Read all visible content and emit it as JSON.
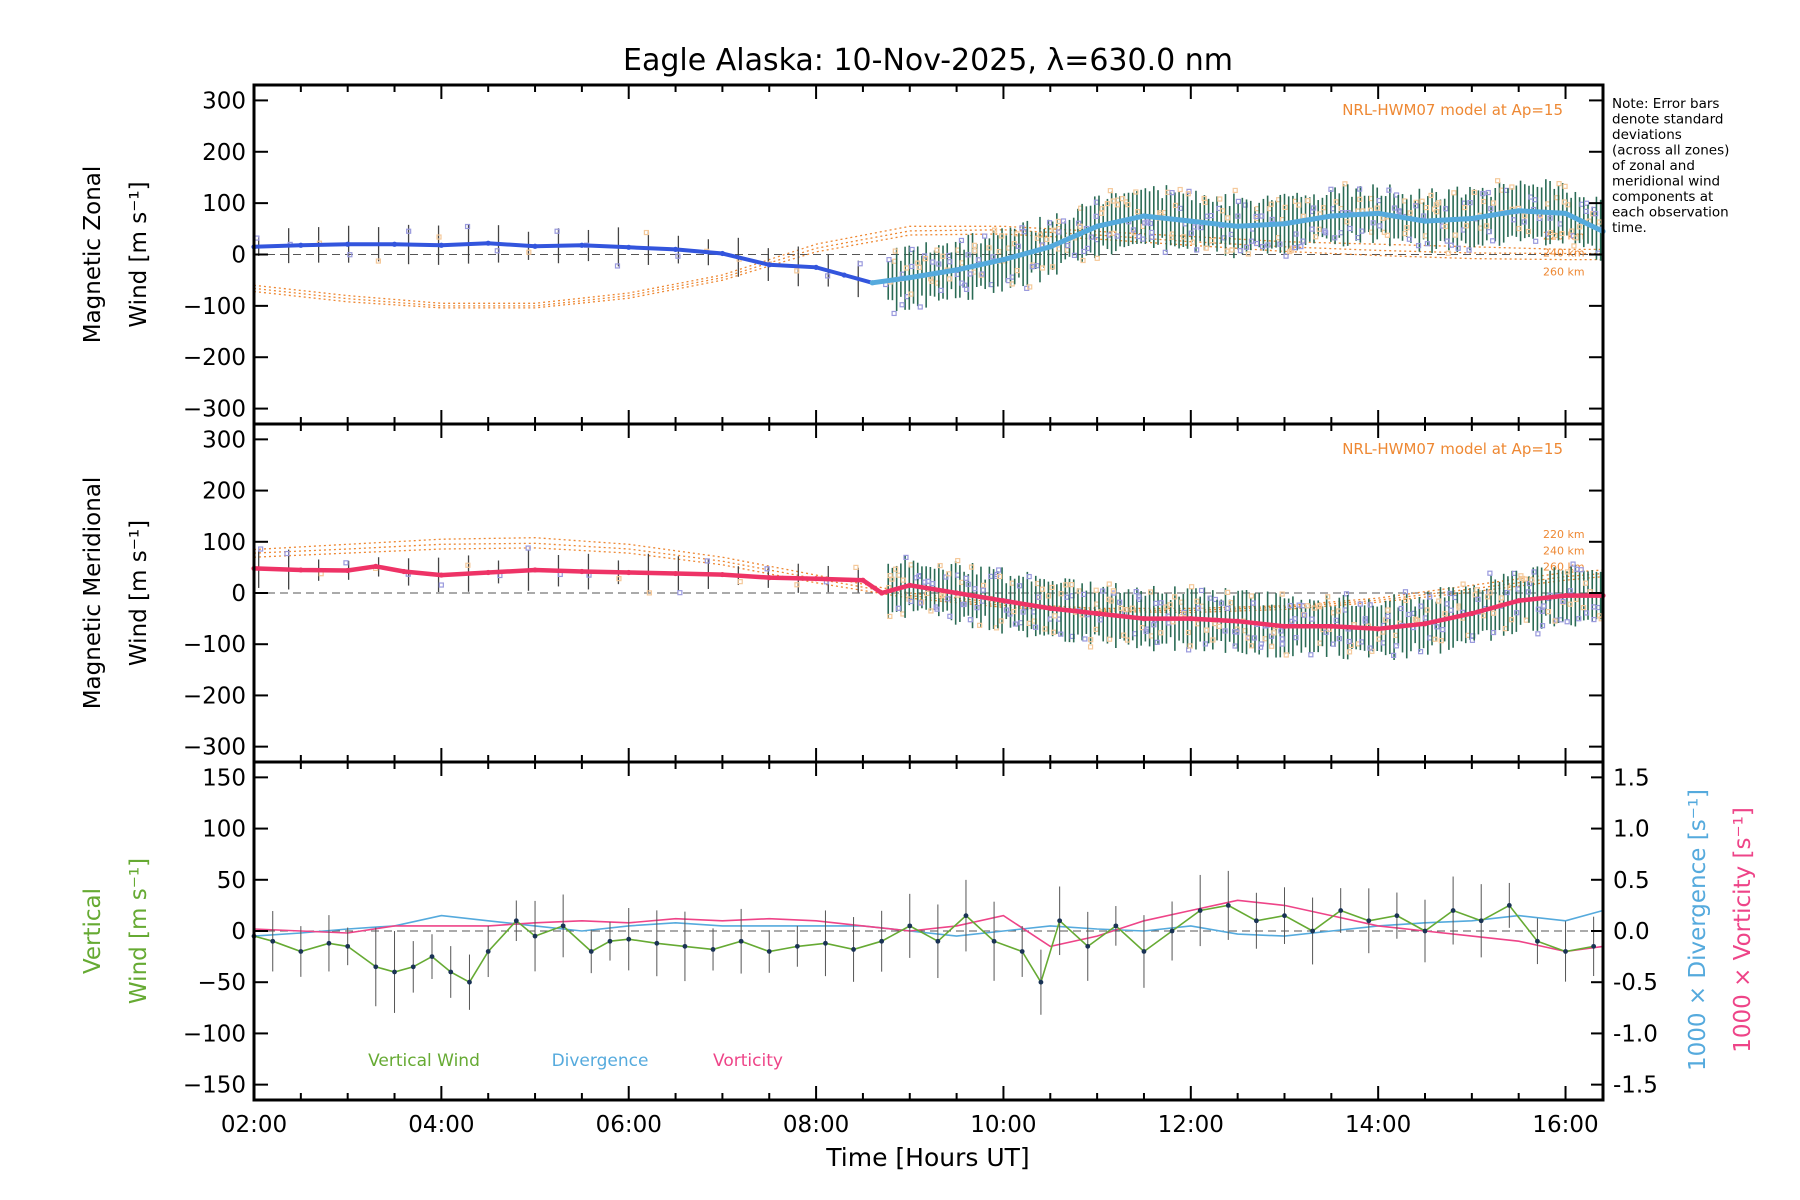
{
  "title": "Eagle Alaska: 10-Nov-2025, λ=630.0 nm",
  "note": [
    "Note: Error bars",
    "denote standard",
    "deviations",
    "(across all zones)",
    "of zonal and",
    "meridional wind",
    "components at",
    "each observation",
    "time."
  ],
  "xlabel": "Time [Hours UT]",
  "x_ticks": [
    "02:00",
    "04:00",
    "06:00",
    "08:00",
    "10:00",
    "12:00",
    "14:00",
    "16:00"
  ],
  "colors": {
    "zonal": "#3355dd",
    "zonal_late": "#55aadd",
    "meridional": "#ee3366",
    "model": "#ee8833",
    "vertical": "#66aa33",
    "divergence": "#55aadd",
    "vorticity": "#ee4488",
    "errbar": "#444444",
    "zone_pts": "#9999dd"
  },
  "chart_data": [
    {
      "type": "line",
      "panel": "zonal",
      "ylabel_line1": "Magnetic Zonal",
      "ylabel_line2": "Wind [m s⁻¹]",
      "ylim": [
        -330,
        330
      ],
      "y_ticks": [
        300,
        200,
        100,
        0,
        -100,
        -200,
        -300
      ],
      "xlim": [
        2.0,
        16.4
      ],
      "model_label": "NRL-HWM07 model at Ap=15",
      "model_alt_labels": [
        "220 km",
        "240 km",
        "260 km"
      ],
      "series": [
        {
          "name": "Zonal wind",
          "x": [
            2.0,
            2.5,
            3.0,
            3.5,
            4.0,
            4.5,
            5.0,
            5.5,
            6.0,
            6.5,
            7.0,
            7.5,
            8.0,
            8.3,
            8.6,
            9.0,
            9.5,
            10.0,
            10.5,
            11.0,
            11.5,
            12.0,
            12.5,
            13.0,
            13.5,
            14.0,
            14.5,
            15.0,
            15.5,
            16.0,
            16.4
          ],
          "y": [
            15,
            18,
            20,
            20,
            18,
            22,
            16,
            18,
            14,
            10,
            2,
            -20,
            -25,
            -40,
            -55,
            -45,
            -30,
            -10,
            15,
            55,
            75,
            65,
            55,
            60,
            75,
            80,
            65,
            70,
            85,
            80,
            45
          ]
        },
        {
          "name": "Model 220 km",
          "x": [
            2,
            3,
            4,
            5,
            6,
            7,
            8,
            9,
            10,
            11,
            12,
            13,
            14,
            15,
            16,
            16.4
          ],
          "y": [
            -60,
            -80,
            -95,
            -95,
            -75,
            -40,
            20,
            55,
            55,
            45,
            35,
            25,
            20,
            15,
            10,
            10
          ]
        },
        {
          "name": "Model 240 km",
          "x": [
            2,
            3,
            4,
            5,
            6,
            7,
            8,
            9,
            10,
            11,
            12,
            13,
            14,
            15,
            16,
            16.4
          ],
          "y": [
            -66,
            -86,
            -100,
            -100,
            -80,
            -45,
            12,
            46,
            48,
            38,
            25,
            15,
            8,
            3,
            2,
            2
          ]
        },
        {
          "name": "Model 260 km",
          "x": [
            2,
            3,
            4,
            5,
            6,
            7,
            8,
            9,
            10,
            11,
            12,
            13,
            14,
            15,
            16,
            16.4
          ],
          "y": [
            -72,
            -92,
            -104,
            -104,
            -85,
            -50,
            5,
            38,
            40,
            30,
            18,
            6,
            -2,
            -8,
            -10,
            -10
          ]
        }
      ]
    },
    {
      "type": "line",
      "panel": "meridional",
      "ylabel_line1": "Magnetic Meridional",
      "ylabel_line2": "Wind [m s⁻¹]",
      "ylim": [
        -330,
        330
      ],
      "y_ticks": [
        300,
        200,
        100,
        0,
        -100,
        -200,
        -300
      ],
      "xlim": [
        2.0,
        16.4
      ],
      "model_label": "NRL-HWM07 model at Ap=15",
      "model_alt_labels": [
        "220 km",
        "240 km",
        "260 km"
      ],
      "series": [
        {
          "name": "Meridional wind",
          "x": [
            2.0,
            2.5,
            3.0,
            3.3,
            3.6,
            4.0,
            4.5,
            5.0,
            5.5,
            6.0,
            6.5,
            7.0,
            7.5,
            8.0,
            8.5,
            8.7,
            9.0,
            9.5,
            10.0,
            10.5,
            11.0,
            11.5,
            12.0,
            12.5,
            13.0,
            13.5,
            14.0,
            14.5,
            15.0,
            15.5,
            16.0,
            16.4
          ],
          "y": [
            48,
            45,
            44,
            52,
            42,
            35,
            40,
            45,
            42,
            40,
            38,
            36,
            30,
            28,
            25,
            0,
            15,
            0,
            -15,
            -30,
            -40,
            -50,
            -50,
            -55,
            -65,
            -65,
            -70,
            -60,
            -40,
            -15,
            -5,
            -5
          ]
        },
        {
          "name": "Model 220 km",
          "x": [
            2,
            3,
            4,
            5,
            6,
            7,
            8,
            9,
            10,
            11,
            12,
            13,
            14,
            15,
            16,
            16.4
          ],
          "y": [
            85,
            95,
            105,
            108,
            95,
            70,
            35,
            0,
            -20,
            -30,
            -30,
            -25,
            -10,
            15,
            40,
            45
          ]
        },
        {
          "name": "Model 240 km",
          "x": [
            2,
            3,
            4,
            5,
            6,
            7,
            8,
            9,
            10,
            11,
            12,
            13,
            14,
            15,
            16,
            16.4
          ],
          "y": [
            78,
            86,
            95,
            97,
            86,
            62,
            28,
            -5,
            -24,
            -33,
            -34,
            -28,
            -14,
            8,
            32,
            38
          ]
        },
        {
          "name": "Model 260 km",
          "x": [
            2,
            3,
            4,
            5,
            6,
            7,
            8,
            9,
            10,
            11,
            12,
            13,
            14,
            15,
            16,
            16.4
          ],
          "y": [
            70,
            78,
            86,
            88,
            78,
            55,
            20,
            -10,
            -28,
            -36,
            -38,
            -32,
            -18,
            2,
            25,
            32
          ]
        }
      ]
    },
    {
      "type": "line",
      "panel": "vertical",
      "ylabel_line1": "Vertical",
      "ylabel_line2": "Wind [m s⁻¹]",
      "ylim": [
        -165,
        165
      ],
      "y_ticks": [
        150,
        100,
        50,
        0,
        -50,
        -100,
        -150
      ],
      "xlim": [
        2.0,
        16.4
      ],
      "y2label_div": "1000 × Divergence [s⁻¹]",
      "y2label_vor": "1000 × Vorticity [s⁻¹]",
      "y2lim": [
        -1.65,
        1.65
      ],
      "y2_ticks": [
        "1.5",
        "1.0",
        "0.5",
        "0.0",
        "-0.5",
        "-1.0",
        "-1.5"
      ],
      "y2_tick_values": [
        1.5,
        1.0,
        0.5,
        0.0,
        -0.5,
        -1.0,
        -1.5
      ],
      "legend": [
        "Vertical Wind",
        "Divergence",
        "Vorticity"
      ],
      "series": [
        {
          "name": "Vertical Wind",
          "x": [
            2.0,
            2.2,
            2.5,
            2.8,
            3.0,
            3.3,
            3.5,
            3.7,
            3.9,
            4.1,
            4.3,
            4.5,
            4.8,
            5.0,
            5.3,
            5.6,
            5.8,
            6.0,
            6.3,
            6.6,
            6.9,
            7.2,
            7.5,
            7.8,
            8.1,
            8.4,
            8.7,
            9.0,
            9.3,
            9.6,
            9.9,
            10.2,
            10.4,
            10.6,
            10.9,
            11.2,
            11.5,
            11.8,
            12.1,
            12.4,
            12.7,
            13.0,
            13.3,
            13.6,
            13.9,
            14.2,
            14.5,
            14.8,
            15.1,
            15.4,
            15.7,
            16.0,
            16.3
          ],
          "y": [
            -5,
            -10,
            -20,
            -12,
            -15,
            -35,
            -40,
            -35,
            -25,
            -40,
            -50,
            -20,
            10,
            -5,
            5,
            -20,
            -10,
            -8,
            -12,
            -15,
            -18,
            -10,
            -20,
            -15,
            -12,
            -18,
            -10,
            5,
            -10,
            15,
            -10,
            -20,
            -50,
            10,
            -15,
            5,
            -20,
            0,
            20,
            25,
            10,
            15,
            0,
            20,
            10,
            15,
            0,
            20,
            10,
            25,
            -10,
            -20,
            -15
          ]
        },
        {
          "name": "Divergence",
          "x": [
            2.0,
            2.5,
            3.0,
            3.5,
            4.0,
            4.5,
            5.0,
            5.5,
            6.0,
            6.5,
            7.0,
            7.5,
            8.0,
            8.5,
            9.0,
            9.5,
            10.0,
            10.5,
            11.0,
            11.5,
            12.0,
            12.5,
            13.0,
            13.5,
            14.0,
            14.5,
            15.0,
            15.5,
            16.0,
            16.4
          ],
          "y": [
            -0.05,
            -0.02,
            0.02,
            0.05,
            0.15,
            0.1,
            0.05,
            0.0,
            0.05,
            0.08,
            0.05,
            0.05,
            0.05,
            0.05,
            0.0,
            -0.05,
            0.0,
            0.05,
            0.02,
            0.0,
            0.05,
            -0.03,
            -0.05,
            0.0,
            0.05,
            0.08,
            0.1,
            0.15,
            0.1,
            0.2
          ]
        },
        {
          "name": "Vorticity",
          "x": [
            2.0,
            2.5,
            3.0,
            3.5,
            4.0,
            4.5,
            5.0,
            5.5,
            6.0,
            6.5,
            7.0,
            7.5,
            8.0,
            8.5,
            9.0,
            9.5,
            10.0,
            10.5,
            11.0,
            11.5,
            12.0,
            12.5,
            13.0,
            13.5,
            14.0,
            14.5,
            15.0,
            15.5,
            16.0,
            16.4
          ],
          "y": [
            0.02,
            0.0,
            -0.02,
            0.05,
            0.05,
            0.05,
            0.08,
            0.1,
            0.08,
            0.12,
            0.1,
            0.12,
            0.1,
            0.05,
            0.0,
            0.05,
            0.15,
            -0.15,
            -0.05,
            0.1,
            0.2,
            0.3,
            0.25,
            0.15,
            0.05,
            0.0,
            -0.05,
            -0.1,
            -0.2,
            -0.15
          ]
        }
      ]
    }
  ]
}
